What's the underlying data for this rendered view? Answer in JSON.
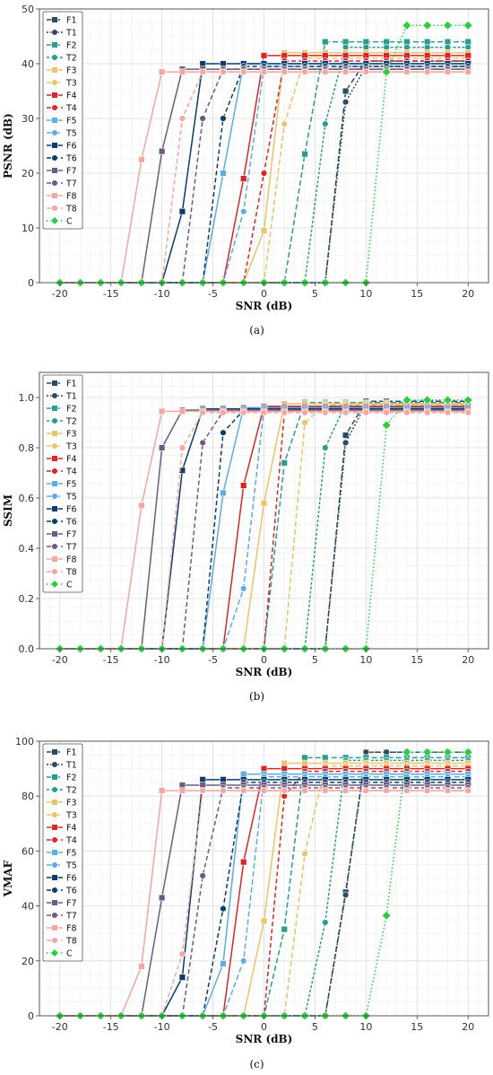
{
  "colors": {
    "F1": "#2c4a63",
    "T1": "#2c4a63",
    "F2": "#2a9d8f",
    "T2": "#2a9d8f",
    "F3": "#e9c46a",
    "T3": "#e9c46a",
    "F4": "#d62828",
    "T4": "#d62828",
    "F5": "#5dade2",
    "T5": "#5dade2",
    "F6": "#0b3c6b",
    "T6": "#0b3c6b",
    "F7": "#6e5a80",
    "T7": "#6e5a80",
    "F8": "#f4a6a0",
    "T8": "#f4a6a0",
    "C": "#2ecc40"
  },
  "legend": [
    "F1",
    "T1",
    "F2",
    "T2",
    "F3",
    "T3",
    "F4",
    "T4",
    "F5",
    "T5",
    "F6",
    "T6",
    "F7",
    "T7",
    "F8",
    "T8",
    "C"
  ],
  "chart_data": [
    {
      "type": "line",
      "caption": "(a)",
      "xlabel": "SNR (dB)",
      "ylabel": "PSNR (dB)",
      "xlim": [
        -22,
        22
      ],
      "ylim": [
        0,
        50
      ],
      "xticks": [
        -20,
        -15,
        -10,
        -5,
        0,
        5,
        10,
        15,
        20
      ],
      "yticks": [
        0,
        10,
        20,
        30,
        40,
        50
      ],
      "grid": true,
      "legend_position": "top-left",
      "series": [
        {
          "name": "F1",
          "thresh": 8,
          "mid": 35,
          "plateau": 40.5
        },
        {
          "name": "T1",
          "thresh": 8,
          "mid": 33,
          "plateau": 39.5
        },
        {
          "name": "F2",
          "thresh": 4,
          "mid": 23.5,
          "plateau": 44
        },
        {
          "name": "T2",
          "thresh": 6,
          "mid": 29,
          "plateau": 43
        },
        {
          "name": "F3",
          "thresh": 0,
          "mid": 9.5,
          "plateau": 42
        },
        {
          "name": "T3",
          "thresh": 2,
          "mid": 29,
          "plateau": 41
        },
        {
          "name": "F4",
          "thresh": -2,
          "mid": 19,
          "plateau": 41.5
        },
        {
          "name": "T4",
          "thresh": 0,
          "mid": 20,
          "plateau": 40.5
        },
        {
          "name": "F5",
          "thresh": -4,
          "mid": 20,
          "plateau": 40
        },
        {
          "name": "T5",
          "thresh": -2,
          "mid": 13,
          "plateau": 39.5
        },
        {
          "name": "F6",
          "thresh": -8,
          "mid": 13,
          "plateau": 40
        },
        {
          "name": "T6",
          "thresh": -4,
          "mid": 30,
          "plateau": 39.5
        },
        {
          "name": "F7",
          "thresh": -10,
          "mid": 24,
          "plateau": 39
        },
        {
          "name": "T7",
          "thresh": -6,
          "mid": 30,
          "plateau": 39
        },
        {
          "name": "F8",
          "thresh": -12,
          "mid": 22.5,
          "plateau": 38.5
        },
        {
          "name": "T8",
          "thresh": -8,
          "mid": 30,
          "plateau": 38.5
        },
        {
          "name": "C",
          "thresh": 12,
          "mid": 38.5,
          "plateau": 47
        }
      ]
    },
    {
      "type": "line",
      "caption": "(b)",
      "xlabel": "SNR (dB)",
      "ylabel": "SSIM",
      "xlim": [
        -22,
        22
      ],
      "ylim": [
        0,
        1.1
      ],
      "xticks": [
        -20,
        -15,
        -10,
        -5,
        0,
        5,
        10,
        15,
        20
      ],
      "yticks": [
        0.0,
        0.2,
        0.4,
        0.6,
        0.8,
        1.0
      ],
      "grid": true,
      "legend_position": "top-left",
      "series": [
        {
          "name": "F1",
          "thresh": 8,
          "mid": 0.85,
          "plateau": 0.985
        },
        {
          "name": "T1",
          "thresh": 8,
          "mid": 0.82,
          "plateau": 0.975
        },
        {
          "name": "F2",
          "thresh": 2,
          "mid": 0.74,
          "plateau": 0.98
        },
        {
          "name": "T2",
          "thresh": 6,
          "mid": 0.8,
          "plateau": 0.975
        },
        {
          "name": "F3",
          "thresh": 0,
          "mid": 0.58,
          "plateau": 0.975
        },
        {
          "name": "T3",
          "thresh": 4,
          "mid": 0.9,
          "plateau": 0.97
        },
        {
          "name": "F4",
          "thresh": -2,
          "mid": 0.65,
          "plateau": 0.965
        },
        {
          "name": "T4",
          "thresh": 2,
          "mid": 0.94,
          "plateau": 0.96
        },
        {
          "name": "F5",
          "thresh": -4,
          "mid": 0.62,
          "plateau": 0.96
        },
        {
          "name": "T5",
          "thresh": -2,
          "mid": 0.24,
          "plateau": 0.955
        },
        {
          "name": "F6",
          "thresh": -8,
          "mid": 0.71,
          "plateau": 0.955
        },
        {
          "name": "T6",
          "thresh": -4,
          "mid": 0.86,
          "plateau": 0.95
        },
        {
          "name": "F7",
          "thresh": -10,
          "mid": 0.8,
          "plateau": 0.95
        },
        {
          "name": "T7",
          "thresh": -6,
          "mid": 0.82,
          "plateau": 0.945
        },
        {
          "name": "F8",
          "thresh": -12,
          "mid": 0.57,
          "plateau": 0.945
        },
        {
          "name": "T8",
          "thresh": -8,
          "mid": 0.8,
          "plateau": 0.94
        },
        {
          "name": "C",
          "thresh": 12,
          "mid": 0.89,
          "plateau": 0.99
        }
      ]
    },
    {
      "type": "line",
      "caption": "(c)",
      "xlabel": "SNR (dB)",
      "ylabel": "VMAF",
      "xlim": [
        -22,
        22
      ],
      "ylim": [
        0,
        100
      ],
      "xticks": [
        -20,
        -15,
        -10,
        -5,
        0,
        5,
        10,
        15,
        20
      ],
      "yticks": [
        0,
        20,
        40,
        60,
        80,
        100
      ],
      "grid": true,
      "legend_position": "top-left",
      "series": [
        {
          "name": "F1",
          "thresh": 8,
          "mid": 45,
          "plateau": 96
        },
        {
          "name": "T1",
          "thresh": 8,
          "mid": 44,
          "plateau": 96
        },
        {
          "name": "F2",
          "thresh": 2,
          "mid": 31.5,
          "plateau": 94
        },
        {
          "name": "T2",
          "thresh": 6,
          "mid": 34,
          "plateau": 93
        },
        {
          "name": "F3",
          "thresh": 0,
          "mid": 34.5,
          "plateau": 92
        },
        {
          "name": "T3",
          "thresh": 4,
          "mid": 59,
          "plateau": 91
        },
        {
          "name": "F4",
          "thresh": -2,
          "mid": 56,
          "plateau": 90
        },
        {
          "name": "T4",
          "thresh": 2,
          "mid": 80,
          "plateau": 89
        },
        {
          "name": "F5",
          "thresh": -4,
          "mid": 19,
          "plateau": 88
        },
        {
          "name": "T5",
          "thresh": -2,
          "mid": 20,
          "plateau": 87
        },
        {
          "name": "F6",
          "thresh": -8,
          "mid": 14,
          "plateau": 86
        },
        {
          "name": "T6",
          "thresh": -4,
          "mid": 39,
          "plateau": 85
        },
        {
          "name": "F7",
          "thresh": -10,
          "mid": 43,
          "plateau": 84
        },
        {
          "name": "T7",
          "thresh": -6,
          "mid": 51,
          "plateau": 83
        },
        {
          "name": "F8",
          "thresh": -12,
          "mid": 18,
          "plateau": 82
        },
        {
          "name": "T8",
          "thresh": -8,
          "mid": 22.5,
          "plateau": 82
        },
        {
          "name": "C",
          "thresh": 12,
          "mid": 36.5,
          "plateau": 96
        }
      ]
    }
  ]
}
